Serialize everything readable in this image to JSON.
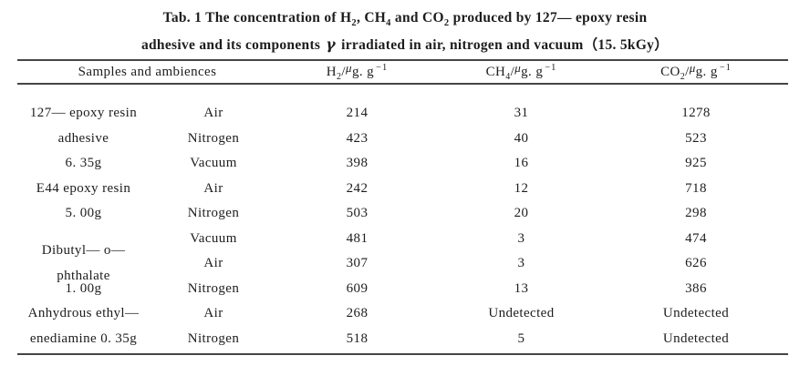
{
  "page": {
    "background_color": "#ffffff",
    "text_color": "#1d1d1d",
    "rule_color": "#454545"
  },
  "title": {
    "seg1": "Tab. 1 The concentration of H",
    "sub1": "2",
    "seg2": ", CH",
    "sub2": "4",
    "seg3": " and CO",
    "sub3": "2",
    "seg4": " produced by 127— epoxy resin",
    "line2_pre_gamma": "adhesive and its components ",
    "gamma": "γ",
    "line2_post_gamma": " irradiated in air, nitrogen and vacuum（15. 5kGy）"
  },
  "table": {
    "header": {
      "samples_label": "Samples and ambiences",
      "gas_columns": [
        {
          "base": "H",
          "sub": "2",
          "slash": "/",
          "mu": "μ",
          "unit": "g. g",
          "exp": "−1"
        },
        {
          "base": "CH",
          "sub": "4",
          "slash": "/",
          "mu": "μ",
          "unit": "g. g",
          "exp": "−1"
        },
        {
          "base": "CO",
          "sub": "2",
          "slash": "/",
          "mu": "μ",
          "unit": "g. g",
          "exp": "−1"
        }
      ]
    },
    "rows": [
      {
        "sample": "127— epoxy resin",
        "ambience": "Air",
        "h2": "214",
        "ch4": "31",
        "co2": "1278"
      },
      {
        "sample": "adhesive",
        "ambience": "Nitrogen",
        "h2": "423",
        "ch4": "40",
        "co2": "523"
      },
      {
        "sample": "6. 35g",
        "ambience": "Vacuum",
        "h2": "398",
        "ch4": "16",
        "co2": "925"
      },
      {
        "sample": "E44 epoxy resin",
        "ambience": "Air",
        "h2": "242",
        "ch4": "12",
        "co2": "718"
      },
      {
        "sample": "5. 00g",
        "ambience": "Nitrogen",
        "h2": "503",
        "ch4": "20",
        "co2": "298"
      },
      {
        "sample": "",
        "ambience": "Vacuum",
        "h2": "481",
        "ch4": "3",
        "co2": "474"
      },
      {
        "sample": "Dibutyl— o— phthalate",
        "ambience": "Air",
        "h2": "307",
        "ch4": "3",
        "co2": "626"
      },
      {
        "sample": "1. 00g",
        "ambience": "Nitrogen",
        "h2": "609",
        "ch4": "13",
        "co2": "386"
      },
      {
        "sample": "Anhydrous ethyl—",
        "ambience": "Air",
        "h2": "268",
        "ch4": "Undetected",
        "co2": "Undetected"
      },
      {
        "sample": "enediamine 0. 35g",
        "ambience": "Nitrogen",
        "h2": "518",
        "ch4": "5",
        "co2": "Undetected"
      }
    ]
  }
}
